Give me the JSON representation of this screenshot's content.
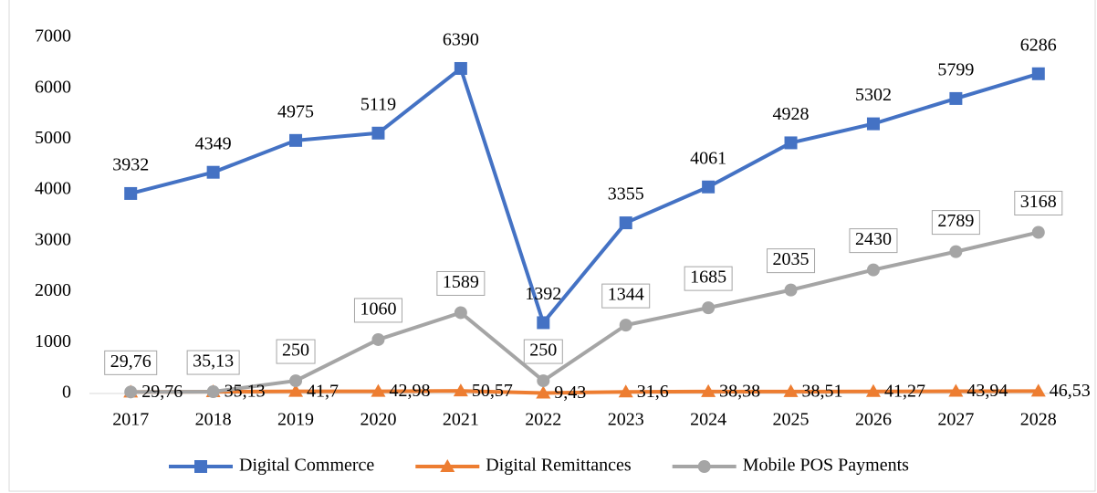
{
  "chart_data": {
    "type": "line",
    "categories": [
      "2017",
      "2018",
      "2019",
      "2020",
      "2021",
      "2022",
      "2023",
      "2024",
      "2025",
      "2026",
      "2027",
      "2028"
    ],
    "series": [
      {
        "name": "Digital Commerce",
        "color": "#4472c4",
        "marker": "square",
        "values": [
          3932,
          4349,
          4975,
          5119,
          6390,
          1392,
          3355,
          4061,
          4928,
          5302,
          5799,
          6286
        ]
      },
      {
        "name": "Digital Remittances",
        "color": "#ed7d31",
        "marker": "triangle",
        "values": [
          29.76,
          35.13,
          41.7,
          42.98,
          50.57,
          9.43,
          31.6,
          38.38,
          38.51,
          41.27,
          43.94,
          46.53
        ],
        "value_labels": [
          "29,76",
          "35,13",
          "41,7",
          "42,98",
          "50,57",
          "9,43",
          "31,6",
          "38,38",
          "38,51",
          "41,27",
          "43,94",
          "46,53"
        ]
      },
      {
        "name": "Mobile POS Payments",
        "color": "#a5a5a5",
        "marker": "circle",
        "values": [
          29.76,
          35.13,
          250,
          1060,
          1589,
          250,
          1344,
          1685,
          2035,
          2430,
          2789,
          3168
        ],
        "value_labels": [
          "29,76",
          "35,13",
          "250",
          "1060",
          "1589",
          "250",
          "1344",
          "1685",
          "2035",
          "2430",
          "2789",
          "3168"
        ]
      }
    ],
    "ylim": [
      0,
      7000
    ],
    "yticks": [
      0,
      1000,
      2000,
      3000,
      4000,
      5000,
      6000,
      7000
    ],
    "grid": false,
    "legend": "bottom"
  }
}
